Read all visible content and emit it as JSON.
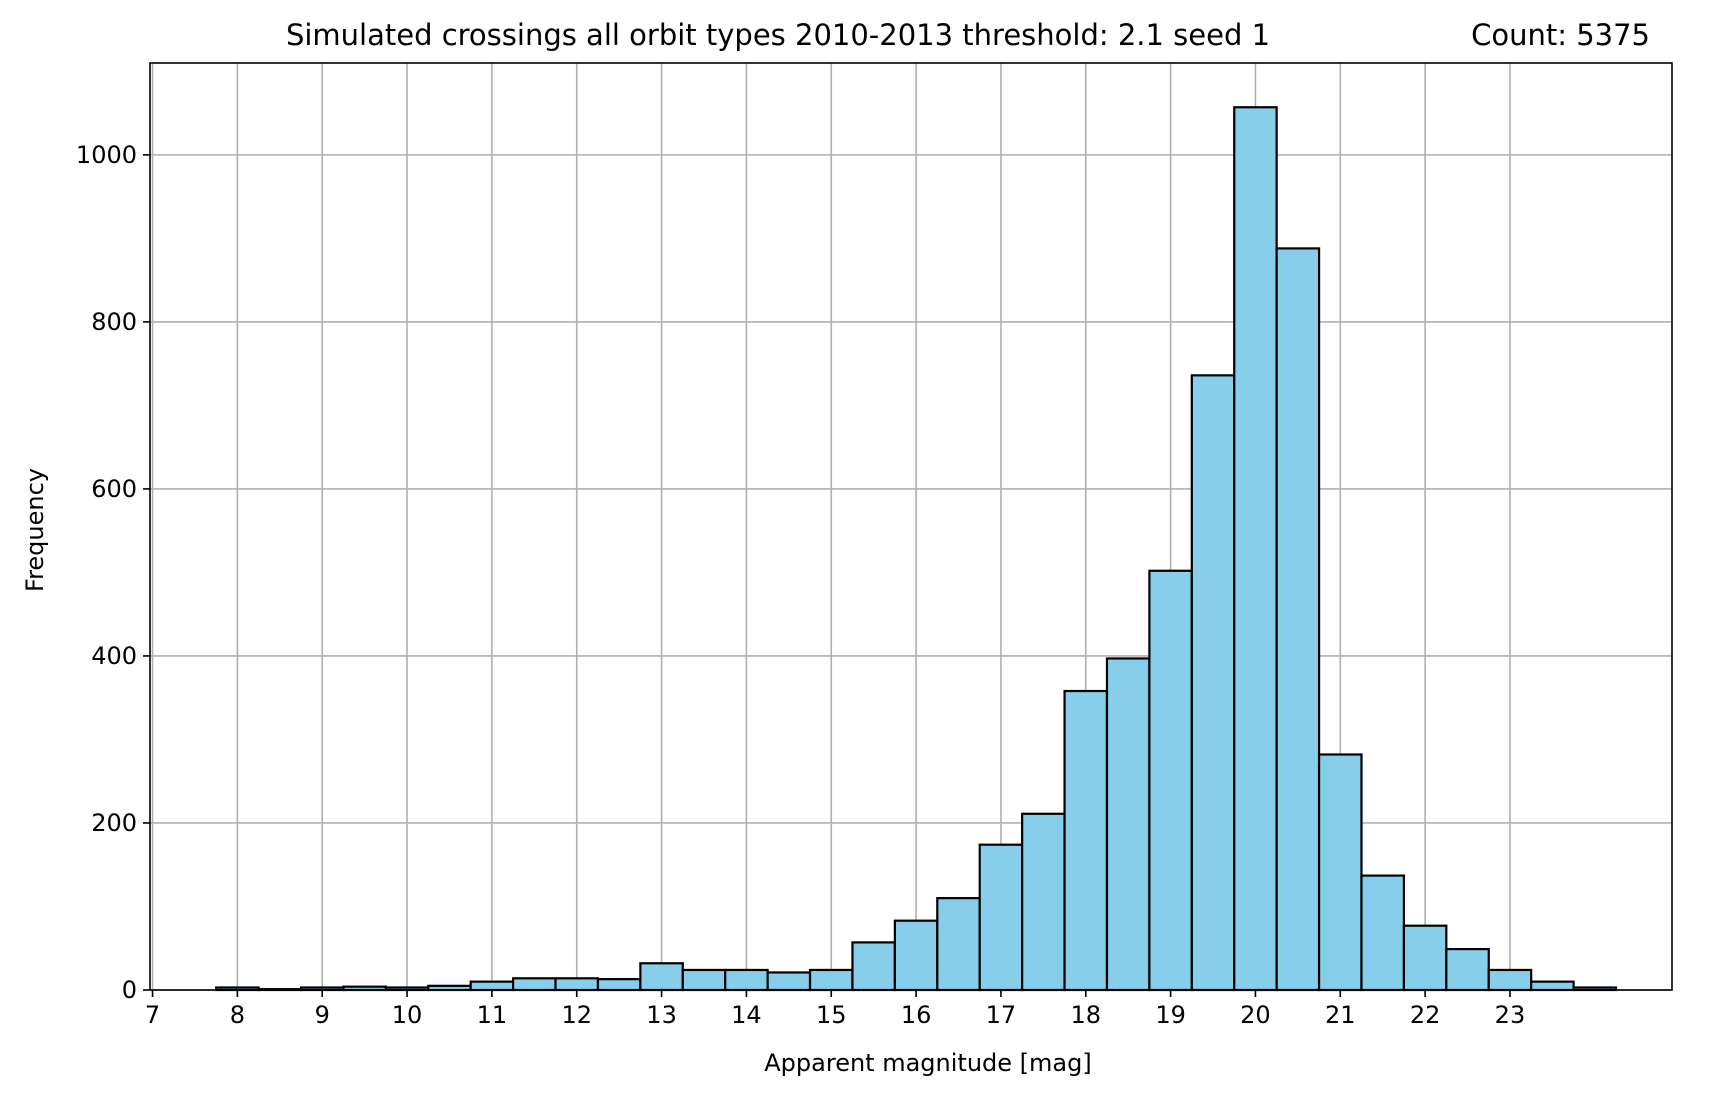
{
  "chart_data": {
    "type": "bar",
    "title": "Simulated crossings all orbit types 2010-2013  threshold: 2.1 seed 1",
    "count_label": "Count: 5375",
    "xlabel": "Apparent magnitude [mag]",
    "ylabel": "Frequency",
    "xlim": [
      6.97,
      24.91
    ],
    "ylim": [
      0,
      1110
    ],
    "x_ticks": [
      7,
      8,
      9,
      10,
      11,
      12,
      13,
      14,
      15,
      16,
      17,
      18,
      19,
      20,
      21,
      22,
      23
    ],
    "y_ticks": [
      0,
      200,
      400,
      600,
      800,
      1000
    ],
    "grid": true,
    "bar_color": "#87ceeb",
    "edge_color": "#000000",
    "grid_color": "#b0b0b0",
    "bins": [
      {
        "x0": 7.75,
        "x1": 8.25,
        "value": 3
      },
      {
        "x0": 8.25,
        "x1": 8.75,
        "value": 1
      },
      {
        "x0": 8.75,
        "x1": 9.25,
        "value": 3
      },
      {
        "x0": 9.25,
        "x1": 9.75,
        "value": 4
      },
      {
        "x0": 9.75,
        "x1": 10.25,
        "value": 3
      },
      {
        "x0": 10.25,
        "x1": 10.75,
        "value": 5
      },
      {
        "x0": 10.75,
        "x1": 11.25,
        "value": 10
      },
      {
        "x0": 11.25,
        "x1": 11.75,
        "value": 14
      },
      {
        "x0": 11.75,
        "x1": 12.25,
        "value": 14
      },
      {
        "x0": 12.25,
        "x1": 12.75,
        "value": 13
      },
      {
        "x0": 12.75,
        "x1": 13.25,
        "value": 32
      },
      {
        "x0": 13.25,
        "x1": 13.75,
        "value": 24
      },
      {
        "x0": 13.75,
        "x1": 14.25,
        "value": 24
      },
      {
        "x0": 14.25,
        "x1": 14.75,
        "value": 21
      },
      {
        "x0": 14.75,
        "x1": 15.25,
        "value": 24
      },
      {
        "x0": 15.25,
        "x1": 15.75,
        "value": 57
      },
      {
        "x0": 15.75,
        "x1": 16.25,
        "value": 83
      },
      {
        "x0": 16.25,
        "x1": 16.75,
        "value": 110
      },
      {
        "x0": 16.75,
        "x1": 17.25,
        "value": 174
      },
      {
        "x0": 17.25,
        "x1": 17.75,
        "value": 211
      },
      {
        "x0": 17.75,
        "x1": 18.25,
        "value": 358
      },
      {
        "x0": 18.25,
        "x1": 18.75,
        "value": 397
      },
      {
        "x0": 18.75,
        "x1": 19.25,
        "value": 502
      },
      {
        "x0": 19.25,
        "x1": 19.75,
        "value": 736
      },
      {
        "x0": 19.75,
        "x1": 20.25,
        "value": 1057
      },
      {
        "x0": 20.25,
        "x1": 20.75,
        "value": 888
      },
      {
        "x0": 20.75,
        "x1": 21.25,
        "value": 282
      },
      {
        "x0": 21.25,
        "x1": 21.75,
        "value": 137
      },
      {
        "x0": 21.75,
        "x1": 22.25,
        "value": 77
      },
      {
        "x0": 22.25,
        "x1": 22.75,
        "value": 49
      },
      {
        "x0": 22.75,
        "x1": 23.25,
        "value": 24
      },
      {
        "x0": 23.25,
        "x1": 23.75,
        "value": 10
      },
      {
        "x0": 23.75,
        "x1": 24.25,
        "value": 3
      }
    ]
  }
}
